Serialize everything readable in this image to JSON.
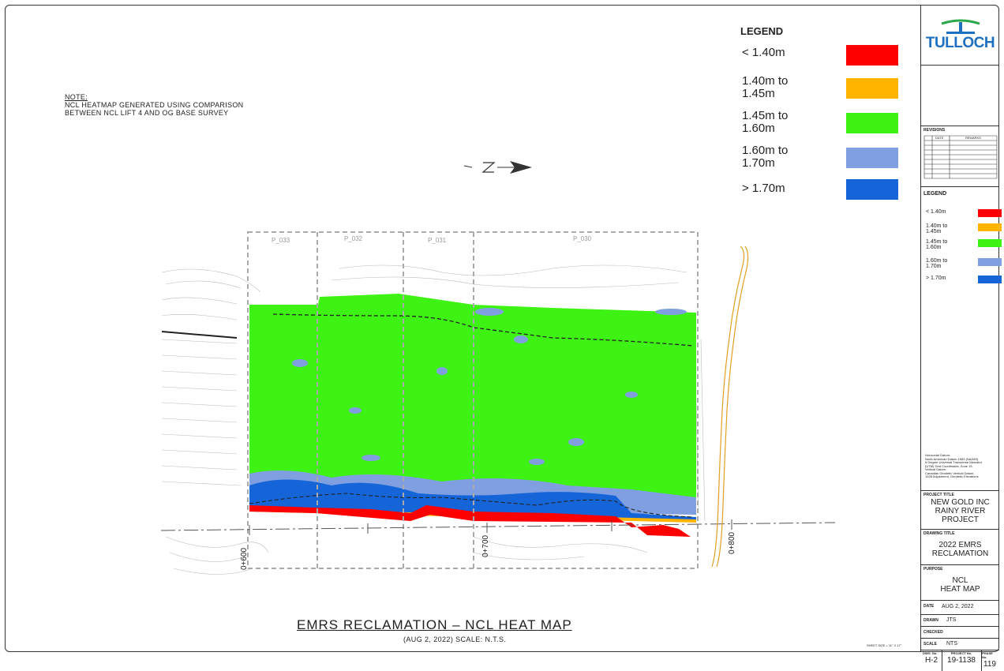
{
  "note": {
    "heading": "NOTE:",
    "lines": [
      "NCL HEATMAP GENERATED USING COMPARISON",
      "BETWEEN NCL LIFT 4 AND OG BASE SURVEY"
    ]
  },
  "legend": {
    "title": "LEGEND",
    "items": [
      {
        "label": "< 1.40m",
        "color": "#ff0000"
      },
      {
        "label": "1.40m to 1.45m",
        "color": "#ffb400"
      },
      {
        "label": "1.45m to 1.60m",
        "color": "#3ef214"
      },
      {
        "label": "1.60m to 1.70m",
        "color": "#7f9fe0"
      },
      {
        "label": "> 1.70m",
        "color": "#1565d8"
      }
    ]
  },
  "map": {
    "panels": [
      "P_033",
      "P_032",
      "P_031",
      "P_030"
    ],
    "chainages": [
      "0+600",
      "0+700",
      "0+800"
    ],
    "title": "EMRS RECLAMATION – NCL HEAT MAP",
    "subtitle": "(AUG 2, 2022)   SCALE: N.T.S."
  },
  "title_block": {
    "company": "TULLOCH",
    "revisions_label": "REVISIONS",
    "rev_cols": [
      "DATE",
      "REMARKS"
    ],
    "legend_title": "LEGEND",
    "legend_items": [
      {
        "label": "< 1.40m",
        "color": "#ff0000"
      },
      {
        "label": "1.40m to 1.45m",
        "color": "#ffb400"
      },
      {
        "label": "1.45m to 1.60m",
        "color": "#3ef214"
      },
      {
        "label": "1.60m to 1.70m",
        "color": "#7f9fe0"
      },
      {
        "label": "> 1.70m",
        "color": "#1565d8"
      }
    ],
    "datum_lines": [
      "Horizontal Datum:",
      "North American Datum 1983 (NAD83)",
      "6 Degree Universal Transverse Mercator",
      "(UTM) Grid Coordinates, Zone 15.",
      "Vertical Datum:",
      "Canadian Geodetic Vertical Datum,",
      "1928 Adjustment, Geodetic Elevations"
    ],
    "project_title_label": "PROJECT TITLE",
    "project_title": [
      "NEW GOLD INC",
      "RAINY RIVER",
      "PROJECT"
    ],
    "drawing_title_label": "DRAWING TITLE",
    "drawing_title": [
      "2022 EMRS",
      "RECLAMATION"
    ],
    "purpose_label": "PURPOSE",
    "purpose": [
      "NCL",
      "HEAT MAP"
    ],
    "date_label": "DATE",
    "date_value": "AUG 2, 2022",
    "drawn_label": "DRAWN",
    "drawn_value": "JTS",
    "checked_label": "CHECKED",
    "scale_label": "SCALE",
    "scale_value": "NTS",
    "dwg_label": "DWG. No.",
    "dwg_value": "H-2",
    "project_no_label": "PROJECT No.",
    "project_no_value": "19-1138",
    "phase_label": "PHASE No.",
    "phase_value": "119"
  },
  "sheet_size": "SHEET SIZE = 11\" X 17\""
}
